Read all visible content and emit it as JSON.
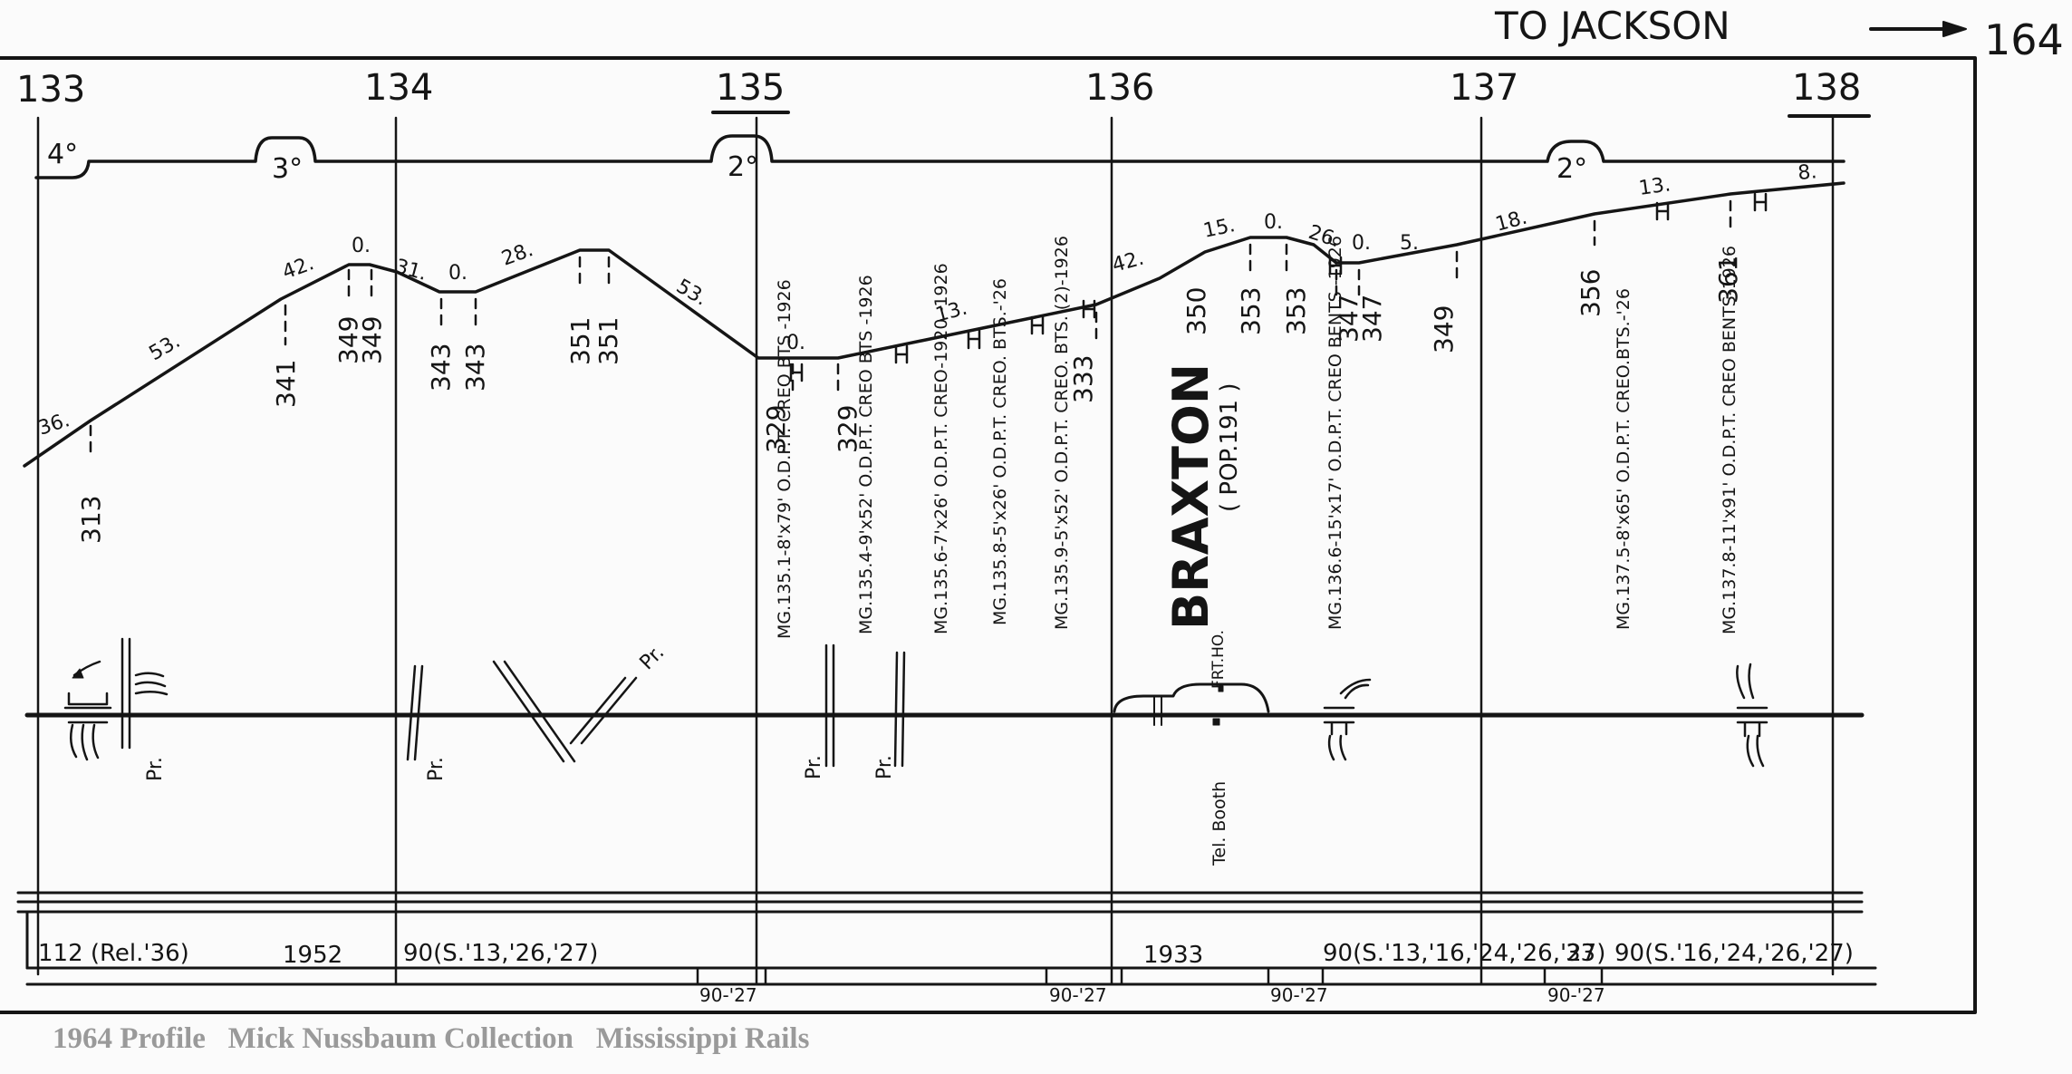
{
  "header": {
    "direction_label": "TO JACKSON",
    "page_ref": "164"
  },
  "mileposts": [
    "133",
    "134",
    "135",
    "136",
    "137",
    "138"
  ],
  "curves": [
    "4°",
    "3°",
    "2°",
    "2°"
  ],
  "grades": [
    "36.",
    "53.",
    "42.",
    "0.",
    "31.",
    "0.",
    "28.",
    "53.",
    "0.",
    "13.",
    "42.",
    "15.",
    "0.",
    "26.",
    "0.",
    "5.",
    "18.",
    "13.",
    "8."
  ],
  "elevations": [
    "313",
    "341",
    "349",
    "349",
    "343",
    "343",
    "351",
    "351",
    "329",
    "329",
    "333",
    "350",
    "353",
    "353",
    "347",
    "347",
    "349",
    "356",
    "361"
  ],
  "bridges": [
    "MG.135.1-8'x79' O.D.P.T. CREO BTS -1926",
    "MG.135.4-9'x52' O.D.P.T. CREO BTS -1926",
    "MG.135.6-7'x26' O.D.P.T. CREO-1920 -1926",
    "MG.135.8-5'x26' O.D.P.T. CREO. BTS.-'26",
    "MG.135.9-5'x52' O.D.P.T. CREO. BTS. (2)-1926",
    "MG.136.6-15'x17' O.D.P.T. CREO BENTS -1926",
    "MG.137.5-8'x65' O.D.P.T. CREO.BTS.-'26",
    "MG.137.8-11'x91' O.D.P.T. CREO BENTS-1926"
  ],
  "station": {
    "name": "BRAXTON",
    "population": "( POP.191 )",
    "freight_house": "FRT.HO.",
    "tel_booth": "Tel. Booth"
  },
  "crossing_label": "Pr.",
  "rail": [
    "112 (Rel.'36)",
    "1952",
    "90(S.'13,'26,'27)",
    "1933",
    "90(S.'13,'16,'24,'26,'27)",
    "33",
    "90(S.'16,'24,'26,'27)"
  ],
  "ties": [
    "90-'27",
    "90-'27",
    "90-'27",
    "90-'27"
  ],
  "caption": "1964 Profile   Mick Nussbaum Collection   Mississippi Rails"
}
